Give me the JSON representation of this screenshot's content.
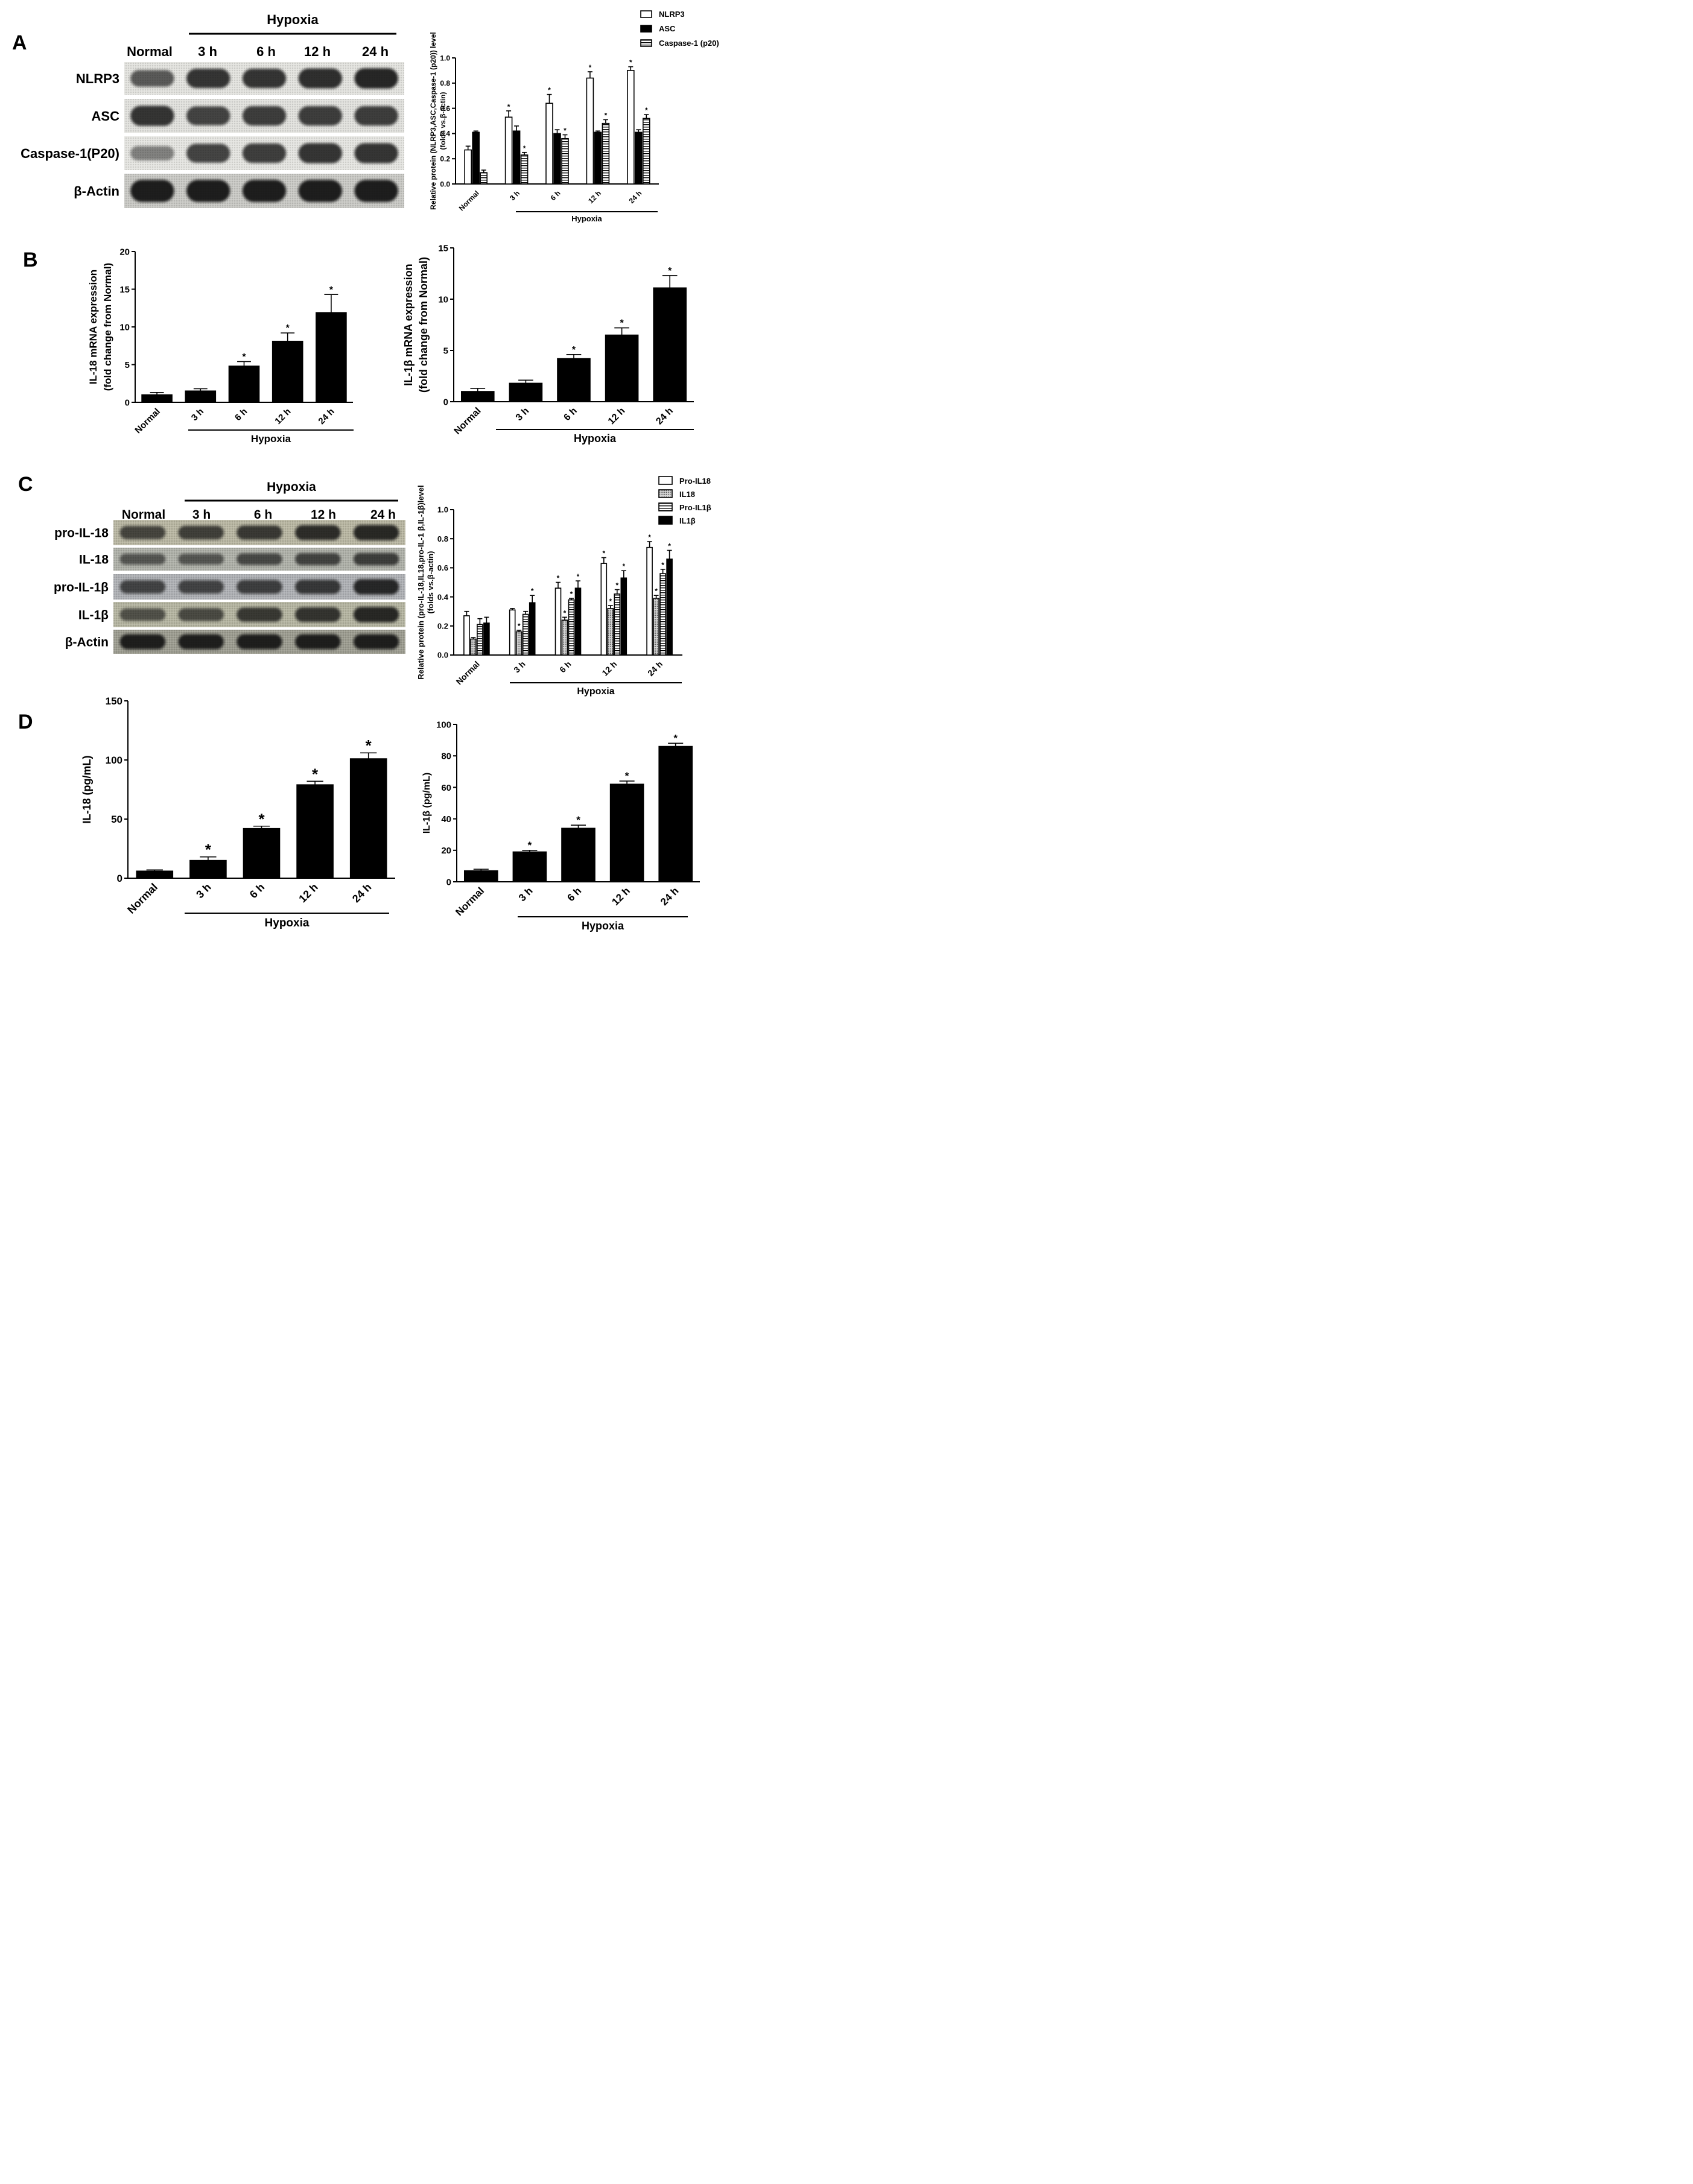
{
  "panel_labels": [
    "A",
    "B",
    "C",
    "D"
  ],
  "blots": [
    {
      "panel": "A",
      "group_label": "Hypoxia",
      "lanes": [
        "Normal",
        "3 h",
        "6 h",
        "12 h",
        "24 h"
      ],
      "rows": [
        {
          "label": "NLRP3",
          "tone": "#e2e2de",
          "intensity": [
            0.55,
            0.8,
            0.8,
            0.85,
            0.9
          ]
        },
        {
          "label": "ASC",
          "tone": "#e0e0dc",
          "intensity": [
            0.8,
            0.7,
            0.75,
            0.75,
            0.75
          ]
        },
        {
          "label": "Caspase-1(P20)",
          "tone": "#e4e4e0",
          "intensity": [
            0.3,
            0.7,
            0.75,
            0.8,
            0.8
          ]
        },
        {
          "label": "β-Actin",
          "tone": "#c8c8c4",
          "intensity": [
            0.95,
            0.95,
            0.95,
            0.95,
            0.95
          ]
        }
      ]
    },
    {
      "panel": "C",
      "group_label": "Hypoxia",
      "lanes": [
        "Normal",
        "3 h",
        "6 h",
        "12 h",
        "24 h"
      ],
      "rows": [
        {
          "label": "pro-IL-18",
          "tone": "#b8b6a2",
          "intensity": [
            0.6,
            0.65,
            0.7,
            0.8,
            0.85
          ]
        },
        {
          "label": "IL-18",
          "tone": "#aeb0a8",
          "intensity": [
            0.45,
            0.45,
            0.55,
            0.6,
            0.65
          ]
        },
        {
          "label": "pro-IL-1β",
          "tone": "#aeb0b4",
          "intensity": [
            0.6,
            0.6,
            0.65,
            0.7,
            0.85
          ]
        },
        {
          "label": "IL-1β",
          "tone": "#b4b4a0",
          "intensity": [
            0.5,
            0.55,
            0.7,
            0.75,
            0.85
          ]
        },
        {
          "label": "β-Actin",
          "tone": "#9c9c90",
          "intensity": [
            0.9,
            0.9,
            0.9,
            0.9,
            0.9
          ]
        }
      ]
    }
  ],
  "chart_data": [
    {
      "id": "A-right",
      "type": "bar",
      "categories": [
        "Normal",
        "3 h",
        "6 h",
        "12 h",
        "24 h"
      ],
      "group_label": "Hypoxia",
      "ylabel_lines": [
        "Relative protein (NLRP3,ASC,Caspase-1 (p20)) level",
        "(folds vs.β-actin)"
      ],
      "ylim": [
        0,
        1.0
      ],
      "yticks": [
        0.0,
        0.2,
        0.4,
        0.6,
        0.8,
        1.0
      ],
      "tick_decimals": 1,
      "legend": "top-right",
      "series": [
        {
          "name": "NLRP3",
          "style": "open",
          "values": [
            0.27,
            0.53,
            0.64,
            0.84,
            0.9
          ],
          "errors": [
            0.03,
            0.05,
            0.07,
            0.05,
            0.03
          ],
          "sig": [
            false,
            true,
            true,
            true,
            true
          ]
        },
        {
          "name": "ASC",
          "style": "solid",
          "values": [
            0.41,
            0.42,
            0.4,
            0.41,
            0.41
          ],
          "errors": [
            0.01,
            0.04,
            0.03,
            0.01,
            0.02
          ],
          "sig": [
            false,
            false,
            false,
            false,
            false
          ]
        },
        {
          "name": "Caspase-1 (p20)",
          "style": "hstripe",
          "values": [
            0.09,
            0.23,
            0.36,
            0.48,
            0.52
          ],
          "errors": [
            0.02,
            0.02,
            0.03,
            0.03,
            0.03
          ],
          "sig": [
            false,
            true,
            true,
            true,
            true
          ]
        }
      ]
    },
    {
      "id": "B-left",
      "type": "bar",
      "categories": [
        "Normal",
        "3 h",
        "6 h",
        "12 h",
        "24 h"
      ],
      "group_label": "Hypoxia",
      "ylabel_lines": [
        "IL-18 mRNA expression",
        "(fold change from Normal)"
      ],
      "ylim": [
        0,
        20
      ],
      "yticks": [
        0,
        5,
        10,
        15,
        20
      ],
      "tick_decimals": 0,
      "series": [
        {
          "name": "IL-18 mRNA",
          "style": "solid",
          "values": [
            1.0,
            1.5,
            4.8,
            8.1,
            11.9
          ],
          "errors": [
            0.3,
            0.3,
            0.6,
            1.1,
            2.4
          ],
          "sig": [
            false,
            false,
            true,
            true,
            true
          ]
        }
      ]
    },
    {
      "id": "B-right",
      "type": "bar",
      "categories": [
        "Normal",
        "3 h",
        "6 h",
        "12 h",
        "24 h"
      ],
      "group_label": "Hypoxia",
      "ylabel_lines": [
        "IL-1β mRNA expression",
        "(fold change from Normal)"
      ],
      "ylim": [
        0,
        15
      ],
      "yticks": [
        0,
        5,
        10,
        15
      ],
      "tick_decimals": 0,
      "series": [
        {
          "name": "IL-1β mRNA",
          "style": "solid",
          "values": [
            1.0,
            1.8,
            4.2,
            6.5,
            11.1
          ],
          "errors": [
            0.3,
            0.3,
            0.4,
            0.7,
            1.2
          ],
          "sig": [
            false,
            false,
            true,
            true,
            true
          ]
        }
      ]
    },
    {
      "id": "C-right",
      "type": "bar",
      "categories": [
        "Normal",
        "3 h",
        "6 h",
        "12 h",
        "24 h"
      ],
      "group_label": "Hypoxia",
      "ylabel_lines": [
        "Relative protein (pro-IL-18,IL18,pro-IL-1 β,IL-1β)level",
        "(folds vs.β-actin)"
      ],
      "ylim": [
        0,
        1.0
      ],
      "yticks": [
        0.0,
        0.2,
        0.4,
        0.6,
        0.8,
        1.0
      ],
      "tick_decimals": 1,
      "legend": "top-right",
      "series": [
        {
          "name": "Pro-IL18",
          "style": "open",
          "values": [
            0.27,
            0.31,
            0.46,
            0.63,
            0.74
          ],
          "errors": [
            0.03,
            0.01,
            0.04,
            0.04,
            0.04
          ],
          "sig": [
            false,
            false,
            true,
            true,
            true
          ]
        },
        {
          "name": "IL18",
          "style": "dotted",
          "values": [
            0.11,
            0.16,
            0.24,
            0.32,
            0.39
          ],
          "errors": [
            0.01,
            0.01,
            0.02,
            0.02,
            0.02
          ],
          "sig": [
            false,
            true,
            true,
            true,
            true
          ]
        },
        {
          "name": "Pro-IL1β",
          "style": "hstripe",
          "values": [
            0.21,
            0.28,
            0.38,
            0.42,
            0.56
          ],
          "errors": [
            0.04,
            0.02,
            0.01,
            0.03,
            0.03
          ],
          "sig": [
            false,
            false,
            true,
            true,
            true
          ]
        },
        {
          "name": "IL1β",
          "style": "solid",
          "values": [
            0.22,
            0.36,
            0.46,
            0.53,
            0.66
          ],
          "errors": [
            0.04,
            0.05,
            0.05,
            0.05,
            0.06
          ],
          "sig": [
            false,
            true,
            true,
            true,
            true
          ]
        }
      ]
    },
    {
      "id": "D-left",
      "type": "bar",
      "categories": [
        "Normal",
        "3 h",
        "6 h",
        "12 h",
        "24 h"
      ],
      "group_label": "Hypoxia",
      "ylabel_lines": [
        "IL-18 (pg/mL)"
      ],
      "ylim": [
        0,
        150
      ],
      "yticks": [
        0,
        50,
        100,
        150
      ],
      "tick_decimals": 0,
      "series": [
        {
          "name": "IL-18",
          "style": "solid",
          "values": [
            6,
            15,
            42,
            79,
            101
          ],
          "errors": [
            1,
            3,
            2,
            3,
            5
          ],
          "sig": [
            false,
            true,
            true,
            true,
            true
          ]
        }
      ]
    },
    {
      "id": "D-right",
      "type": "bar",
      "categories": [
        "Normal",
        "3 h",
        "6 h",
        "12 h",
        "24 h"
      ],
      "group_label": "Hypoxia",
      "ylabel_lines": [
        "IL-1β (pg/mL)"
      ],
      "ylim": [
        0,
        100
      ],
      "yticks": [
        0,
        20,
        40,
        60,
        80,
        100
      ],
      "tick_decimals": 0,
      "series": [
        {
          "name": "IL-1β",
          "style": "solid",
          "values": [
            7,
            19,
            34,
            62,
            86
          ],
          "errors": [
            1,
            1,
            2,
            2,
            2
          ],
          "sig": [
            false,
            true,
            true,
            true,
            true
          ]
        }
      ]
    }
  ]
}
